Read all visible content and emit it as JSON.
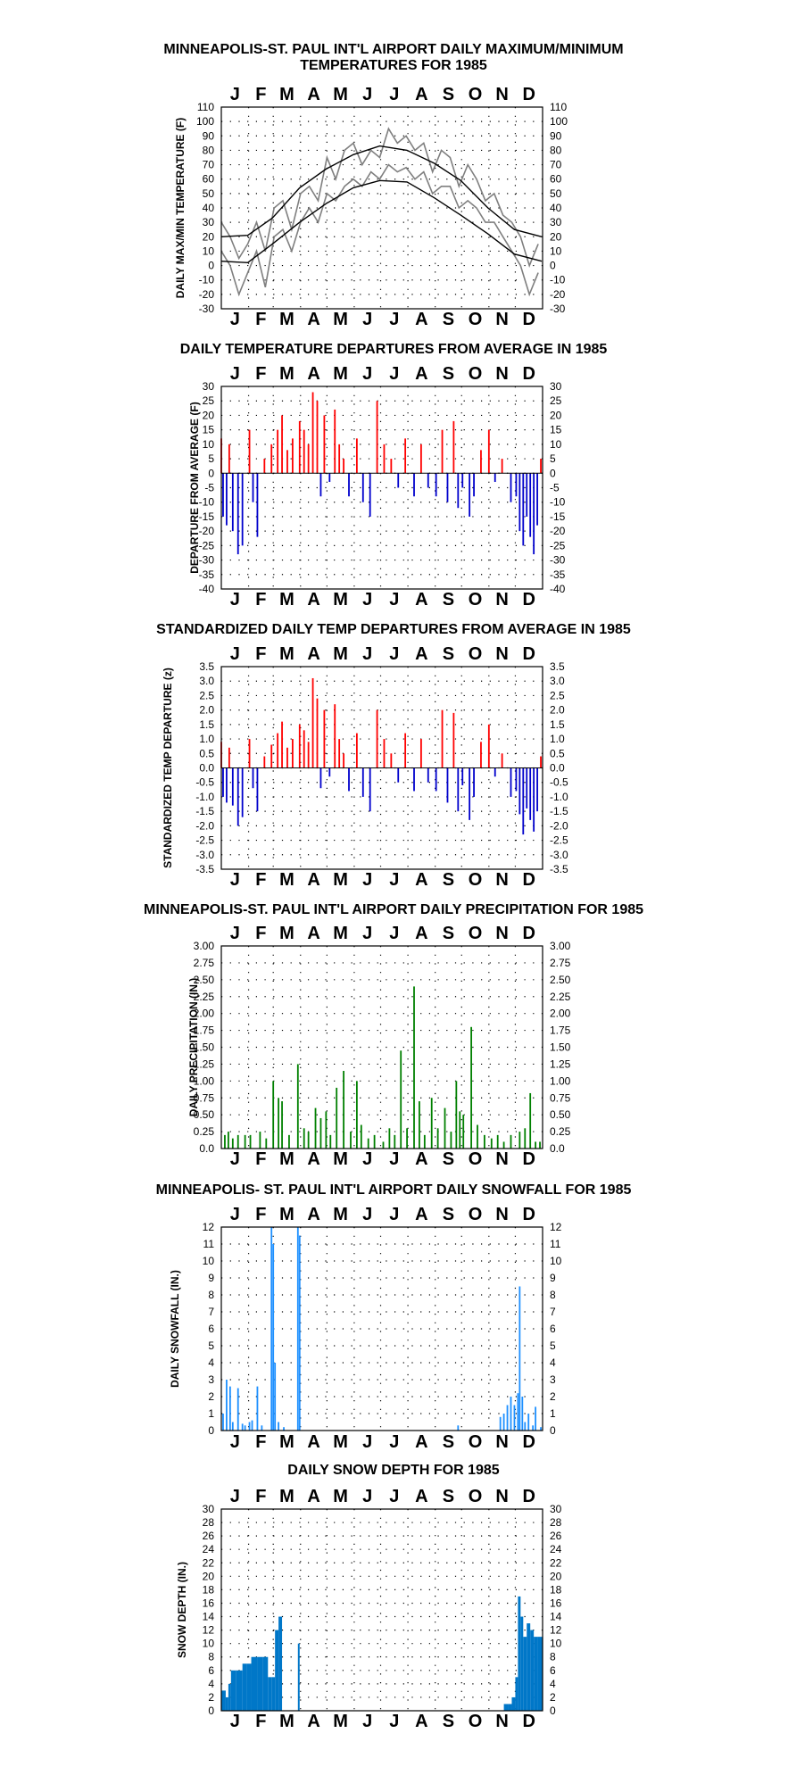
{
  "colors": {
    "record": "#7f7f7f",
    "normal": "#000000",
    "warm": "#ff0000",
    "cold": "#0000cc",
    "precip": "#008000",
    "snowfall": "#1e90ff",
    "snowdepth": "#0077c8",
    "grid": "#000000"
  },
  "chart_data": [
    {
      "type": "line",
      "title": "MINNEAPOLIS-ST. PAUL INT'L AIRPORT DAILY MAXIMUM/MINIMUM",
      "subtitle": "TEMPERATURES FOR 1985",
      "ylabel": "DAILY MAX/MIN TEMPERATURE (F)",
      "months": [
        "J",
        "F",
        "M",
        "A",
        "M",
        "J",
        "J",
        "A",
        "S",
        "O",
        "N",
        "D"
      ],
      "ylim": [
        -30,
        110
      ],
      "yticks": [
        "110",
        "100",
        "90",
        "80",
        "70",
        "60",
        "50",
        "40",
        "30",
        "20",
        "10",
        "0",
        "-10",
        "-20",
        "-30"
      ],
      "series": [
        {
          "role": "observed max (sampled every 10 days)",
          "x": [
            1,
            11,
            21,
            31,
            41,
            51,
            61,
            71,
            81,
            91,
            101,
            111,
            121,
            131,
            141,
            151,
            161,
            171,
            181,
            191,
            201,
            211,
            221,
            231,
            241,
            251,
            261,
            271,
            281,
            291,
            301,
            311,
            321,
            331,
            341,
            351,
            361
          ],
          "values": [
            30,
            20,
            5,
            15,
            30,
            10,
            40,
            45,
            25,
            50,
            55,
            45,
            75,
            60,
            80,
            85,
            70,
            80,
            75,
            95,
            85,
            90,
            80,
            85,
            65,
            80,
            75,
            55,
            70,
            60,
            45,
            50,
            35,
            30,
            20,
            0,
            15
          ]
        },
        {
          "role": "observed min (sampled every 10 days)",
          "x": [
            1,
            11,
            21,
            31,
            41,
            51,
            61,
            71,
            81,
            91,
            101,
            111,
            121,
            131,
            141,
            151,
            161,
            171,
            181,
            191,
            201,
            211,
            221,
            231,
            241,
            251,
            261,
            271,
            281,
            291,
            301,
            311,
            321,
            331,
            341,
            351,
            361
          ],
          "values": [
            10,
            0,
            -20,
            -5,
            10,
            -15,
            20,
            25,
            10,
            30,
            40,
            30,
            50,
            45,
            55,
            60,
            55,
            65,
            60,
            70,
            65,
            68,
            60,
            65,
            50,
            55,
            55,
            40,
            45,
            40,
            30,
            30,
            20,
            10,
            0,
            -20,
            -5
          ]
        },
        {
          "role": "normal max",
          "x": [
            1,
            31,
            59,
            90,
            120,
            151,
            181,
            212,
            243,
            273,
            304,
            334,
            365
          ],
          "values": [
            20,
            21,
            33,
            54,
            67,
            77,
            83,
            80,
            71,
            59,
            40,
            25,
            20
          ]
        },
        {
          "role": "normal min",
          "x": [
            1,
            31,
            59,
            90,
            120,
            151,
            181,
            212,
            243,
            273,
            304,
            334,
            365
          ],
          "values": [
            3,
            2,
            15,
            30,
            43,
            54,
            59,
            58,
            47,
            35,
            22,
            8,
            3
          ]
        }
      ]
    },
    {
      "type": "bar",
      "title": "DAILY TEMPERATURE DEPARTURES FROM AVERAGE IN 1985",
      "ylabel": "DEPARTURE FROM AVERAGE (F)",
      "months": [
        "J",
        "F",
        "M",
        "A",
        "M",
        "J",
        "J",
        "A",
        "S",
        "O",
        "N",
        "D"
      ],
      "ylim": [
        -40,
        30
      ],
      "yticks": [
        "30",
        "25",
        "20",
        "15",
        "10",
        "5",
        "0",
        "-5",
        "-10",
        "-15",
        "-20",
        "-25",
        "-30",
        "-35",
        "-40"
      ],
      "x": [
        1,
        3,
        7,
        10,
        14,
        20,
        25,
        33,
        37,
        42,
        50,
        58,
        65,
        70,
        76,
        82,
        90,
        95,
        100,
        105,
        110,
        114,
        118,
        124,
        130,
        135,
        140,
        146,
        155,
        162,
        170,
        178,
        186,
        194,
        202,
        210,
        220,
        228,
        236,
        245,
        252,
        258,
        265,
        270,
        275,
        283,
        288,
        296,
        305,
        312,
        320,
        330,
        336,
        340,
        344,
        348,
        352,
        356,
        360,
        364
      ],
      "values": [
        12,
        -15,
        -18,
        10,
        -20,
        -28,
        -25,
        15,
        -10,
        -22,
        5,
        10,
        15,
        20,
        8,
        12,
        18,
        15,
        10,
        28,
        25,
        -8,
        20,
        -3,
        22,
        10,
        5,
        -8,
        12,
        -10,
        -15,
        25,
        10,
        5,
        -5,
        12,
        -8,
        10,
        -5,
        -8,
        15,
        -10,
        18,
        -12,
        -5,
        -15,
        -8,
        8,
        15,
        -3,
        5,
        -10,
        -8,
        -20,
        -25,
        -15,
        -22,
        -28,
        -18,
        5
      ]
    },
    {
      "type": "bar",
      "title": "STANDARDIZED DAILY TEMP DEPARTURES FROM AVERAGE IN 1985",
      "ylabel": "STANDARDIZED TEMP DEPARTURE (z)",
      "months": [
        "J",
        "F",
        "M",
        "A",
        "M",
        "J",
        "J",
        "A",
        "S",
        "O",
        "N",
        "D"
      ],
      "ylim": [
        -3.5,
        3.5
      ],
      "yticks": [
        "3.5",
        "3.0",
        "2.5",
        "2.0",
        "1.5",
        "1.0",
        "0.5",
        "0.0",
        "-0.5",
        "-1.0",
        "-1.5",
        "-2.0",
        "-2.5",
        "-3.0",
        "-3.5"
      ],
      "x": [
        1,
        3,
        7,
        10,
        14,
        20,
        25,
        33,
        37,
        42,
        50,
        58,
        65,
        70,
        76,
        82,
        90,
        95,
        100,
        105,
        110,
        114,
        118,
        124,
        130,
        135,
        140,
        146,
        155,
        162,
        170,
        178,
        186,
        194,
        202,
        210,
        220,
        228,
        236,
        245,
        252,
        258,
        265,
        270,
        275,
        283,
        288,
        296,
        305,
        312,
        320,
        330,
        336,
        340,
        344,
        348,
        352,
        356,
        360,
        364
      ],
      "values": [
        0.9,
        -1.0,
        -1.2,
        0.7,
        -1.3,
        -2.0,
        -1.7,
        1.0,
        -0.7,
        -1.5,
        0.4,
        0.8,
        1.2,
        1.6,
        0.7,
        1.0,
        1.5,
        1.3,
        0.9,
        3.1,
        2.4,
        -0.7,
        2.0,
        -0.3,
        2.2,
        1.0,
        0.5,
        -0.8,
        1.2,
        -1.0,
        -1.5,
        2.0,
        1.0,
        0.5,
        -0.5,
        1.2,
        -0.8,
        1.0,
        -0.5,
        -0.8,
        2.0,
        -1.2,
        1.9,
        -1.5,
        -0.6,
        -1.8,
        -1.0,
        0.9,
        1.5,
        -0.3,
        0.5,
        -1.0,
        -0.8,
        -1.6,
        -2.3,
        -1.4,
        -1.8,
        -2.2,
        -1.5,
        0.4
      ]
    },
    {
      "type": "bar",
      "title": "MINNEAPOLIS-ST. PAUL INT'L AIRPORT DAILY PRECIPITATION FOR 1985",
      "ylabel": "DAILY PRECIPITATION (IN.)",
      "months": [
        "J",
        "F",
        "M",
        "A",
        "M",
        "J",
        "J",
        "A",
        "S",
        "O",
        "N",
        "D"
      ],
      "ylim": [
        0,
        3
      ],
      "yticks": [
        "3.00",
        "2.75",
        "2.50",
        "2.25",
        "2.00",
        "1.75",
        "1.50",
        "1.25",
        "1.00",
        "0.75",
        "0.50",
        "0.25",
        "0.0"
      ],
      "x": [
        5,
        9,
        14,
        20,
        28,
        34,
        45,
        52,
        60,
        66,
        70,
        78,
        88,
        95,
        100,
        108,
        114,
        120,
        125,
        132,
        140,
        148,
        155,
        160,
        168,
        175,
        185,
        192,
        198,
        205,
        212,
        220,
        226,
        232,
        240,
        247,
        255,
        262,
        268,
        272,
        276,
        285,
        292,
        300,
        308,
        315,
        322,
        330,
        340,
        346,
        352,
        358,
        363
      ],
      "values": [
        0.2,
        0.25,
        0.15,
        0.2,
        0.2,
        0.2,
        0.25,
        0.15,
        1.0,
        0.75,
        0.7,
        0.2,
        1.25,
        0.3,
        0.25,
        0.6,
        0.45,
        0.55,
        0.2,
        0.9,
        1.15,
        0.25,
        1.0,
        0.35,
        0.15,
        0.2,
        0.1,
        0.3,
        0.2,
        1.45,
        0.3,
        2.4,
        0.7,
        0.2,
        0.75,
        0.3,
        0.6,
        0.25,
        1.0,
        0.55,
        0.5,
        1.8,
        0.35,
        0.2,
        0.15,
        0.2,
        0.1,
        0.2,
        0.25,
        0.3,
        0.82,
        0.1,
        0.1
      ]
    },
    {
      "type": "bar",
      "title": "MINNEAPOLIS- ST. PAUL INT'L AIRPORT DAILY SNOWFALL FOR 1985",
      "ylabel": "DAILY SNOWFALL (IN.)",
      "months": [
        "J",
        "F",
        "M",
        "A",
        "M",
        "J",
        "J",
        "A",
        "S",
        "O",
        "N",
        "D"
      ],
      "ylim": [
        0,
        12
      ],
      "yticks": [
        "12",
        "11",
        "10",
        "9",
        "8",
        "7",
        "6",
        "5",
        "4",
        "3",
        "2",
        "1",
        "0"
      ],
      "x": [
        3,
        7,
        11,
        14,
        20,
        25,
        28,
        33,
        36,
        42,
        47,
        58,
        60,
        62,
        66,
        72,
        88,
        90,
        270,
        318,
        322,
        326,
        330,
        334,
        338,
        340,
        343,
        346,
        350,
        355,
        358,
        364
      ],
      "values": [
        1.0,
        3.0,
        2.6,
        0.5,
        2.5,
        0.4,
        0.3,
        0.5,
        0.6,
        2.6,
        0.3,
        12.0,
        11.0,
        4.0,
        0.5,
        0.2,
        12.0,
        11.5,
        0.3,
        0.8,
        1.0,
        1.5,
        2.0,
        1.5,
        2.2,
        8.5,
        2.0,
        0.5,
        1.0,
        0.3,
        1.4,
        0.2
      ]
    },
    {
      "type": "area",
      "title": "DAILY SNOW DEPTH FOR 1985",
      "ylabel": "SNOW DEPTH (IN.)",
      "months": [
        "J",
        "F",
        "M",
        "A",
        "M",
        "J",
        "J",
        "A",
        "S",
        "O",
        "N",
        "D"
      ],
      "ylim": [
        0,
        30
      ],
      "yticks": [
        "30",
        "28",
        "26",
        "24",
        "22",
        "20",
        "18",
        "16",
        "14",
        "12",
        "10",
        "8",
        "6",
        "4",
        "2",
        "0"
      ],
      "x": [
        1,
        6,
        9,
        12,
        18,
        25,
        30,
        35,
        42,
        48,
        54,
        58,
        62,
        66,
        70,
        75,
        86,
        88,
        90,
        93,
        316,
        322,
        327,
        331,
        335,
        338,
        341,
        344,
        348,
        352,
        356,
        360,
        365
      ],
      "values": [
        3,
        2,
        4,
        6,
        6,
        7,
        7,
        8,
        8,
        8,
        5,
        5,
        12,
        14,
        0,
        0,
        0,
        10,
        0,
        0,
        0,
        1,
        1,
        2,
        5,
        17,
        14,
        11,
        13,
        12,
        11,
        11,
        11
      ]
    }
  ]
}
